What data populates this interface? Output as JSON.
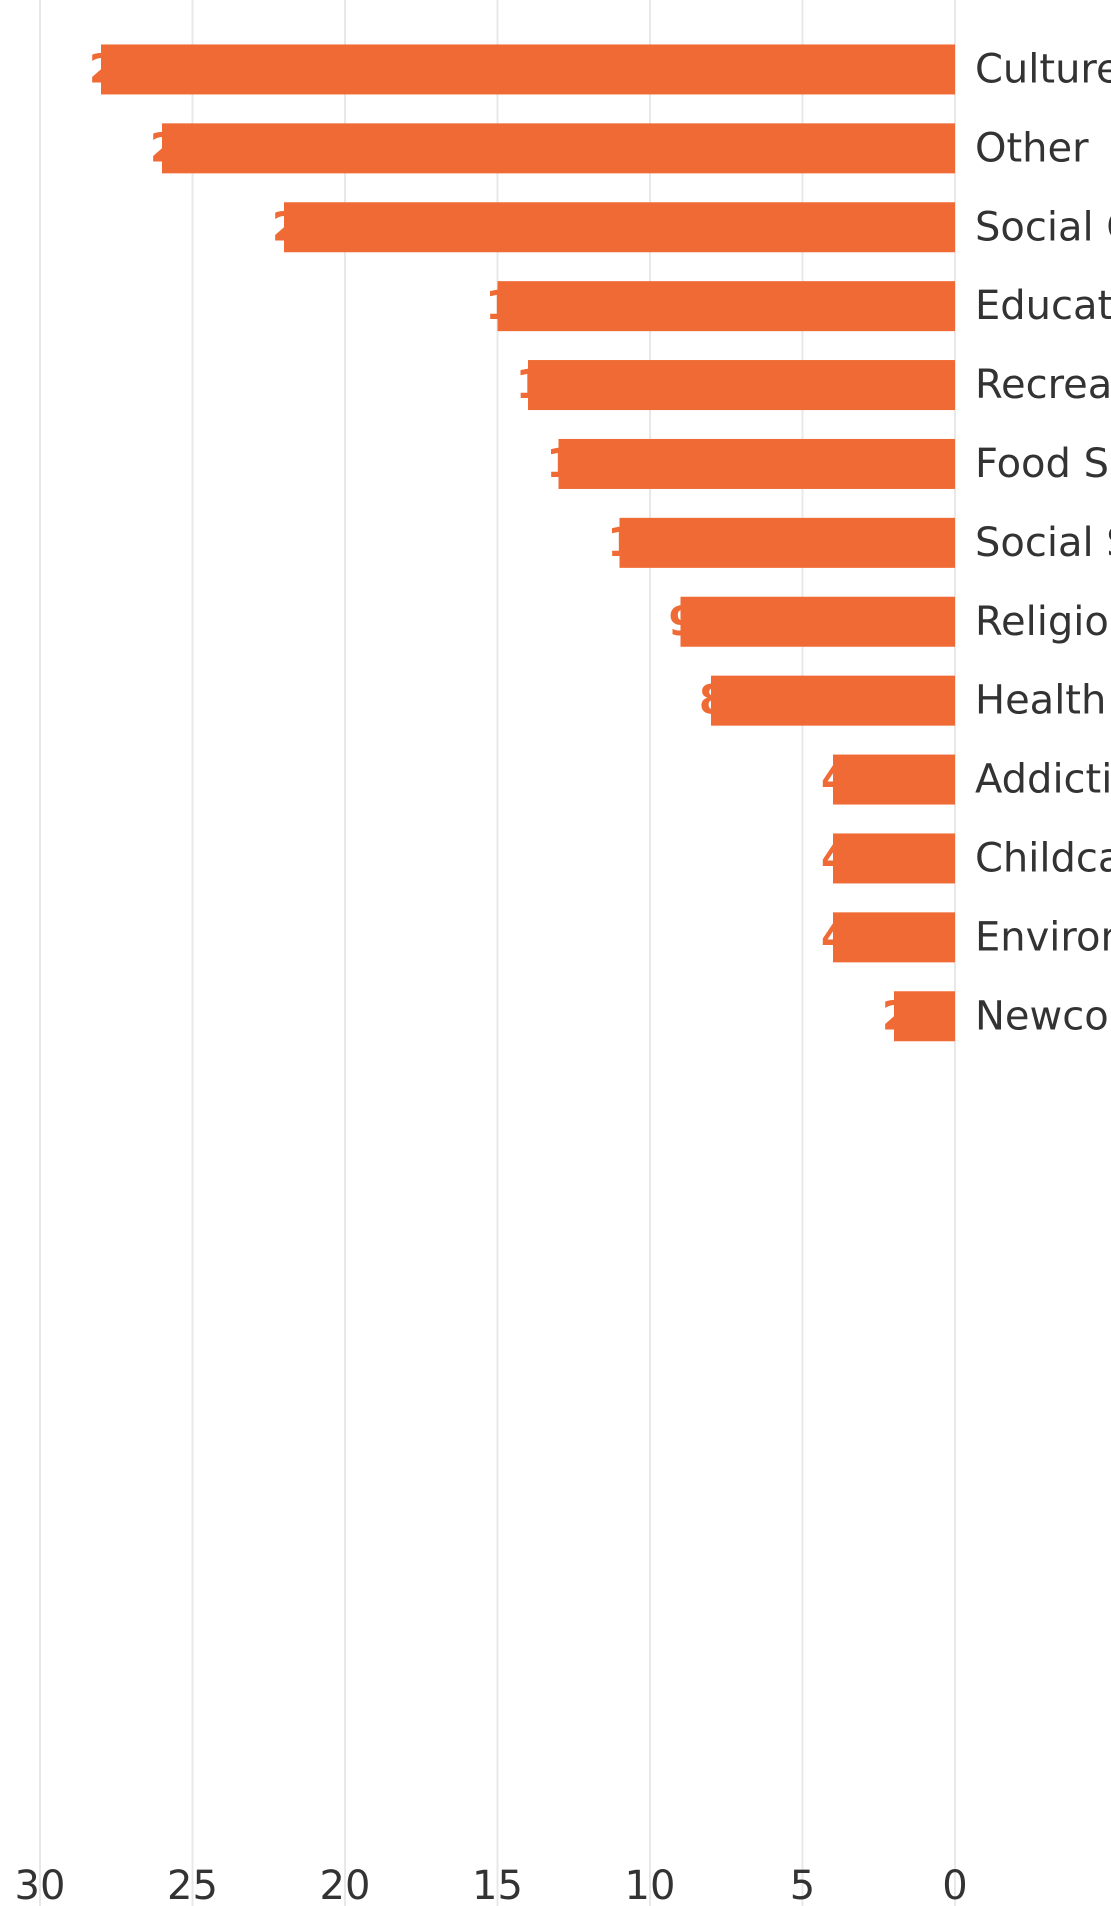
{
  "chart_data": {
    "type": "bar",
    "orientation": "vertical",
    "categories": [
      "Culture and Arts",
      "Other",
      "Social Club",
      "Education and Research",
      "Recreation and Sports",
      "Food Security and Food Services",
      "Social Services",
      "Religion",
      "Health",
      "Addiction and Mental Health",
      "Childcare",
      "Environment",
      "Newcomer Settlement Services"
    ],
    "values": [
      28,
      26,
      22,
      15,
      14,
      13,
      11,
      9,
      8,
      4,
      4,
      4,
      2
    ],
    "data_labels": [
      "28",
      "26",
      "22",
      "15",
      "14",
      "13",
      "11",
      "9",
      "8",
      "4",
      "4",
      "4",
      "2"
    ],
    "y_ticks": [
      0,
      5,
      10,
      15,
      20,
      25,
      30
    ],
    "y_tick_labels": [
      "0",
      "5",
      "10",
      "15",
      "20",
      "25",
      "30"
    ],
    "ylim": [
      0,
      30
    ],
    "title": "",
    "xlabel": "",
    "ylabel": "",
    "grid": true,
    "legend": "none",
    "rotation": "rotated 90 degrees clockwise",
    "colors": {
      "bar": "#f06a35",
      "value_label": "#f06a35",
      "grid": "#e8e8e8",
      "text": "#333333"
    }
  }
}
